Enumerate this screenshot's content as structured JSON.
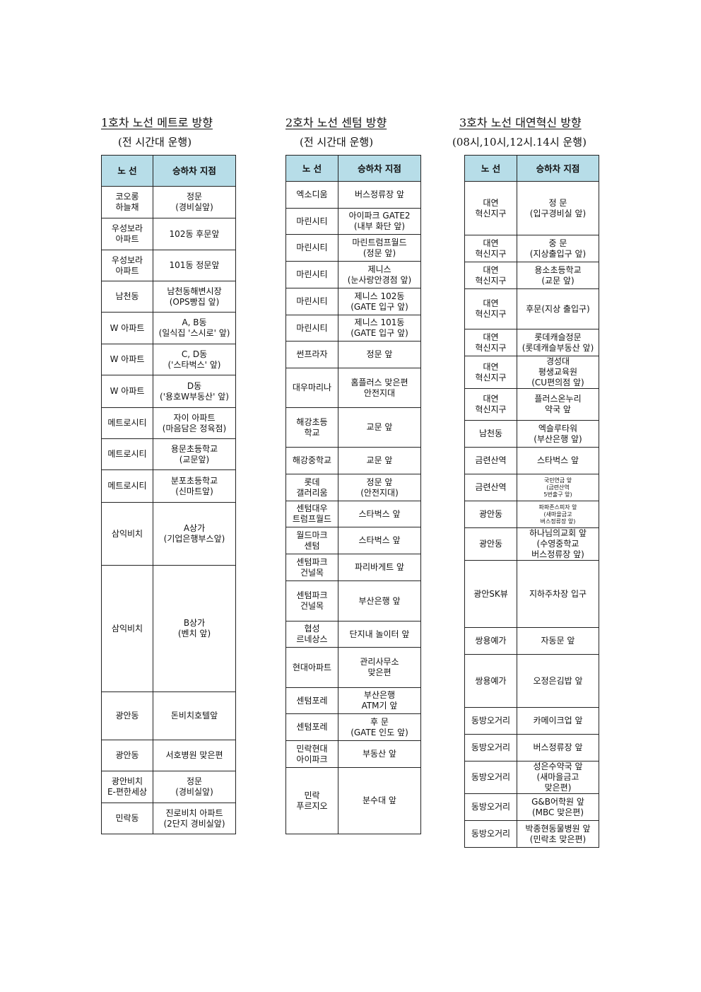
{
  "header_color": "#b7dde8",
  "routes": [
    {
      "title": "1호차 노선 메트로 방향",
      "subtitle": "(전 시간대 운행)",
      "col_route": "노 선",
      "col_stop": "승하차 지점",
      "rows": [
        {
          "route": "코오롱\n하늘채",
          "stop": "정문\n(경비실앞)"
        },
        {
          "route": "우성보라\n아파트",
          "stop": "102동 후문앞"
        },
        {
          "route": "우성보라\n아파트",
          "stop": "101동 정문앞"
        },
        {
          "route": "남천동",
          "stop": "남천동해변시장\n(OPS빵집 앞)"
        },
        {
          "route": "W 아파트",
          "stop": "A, B동\n(일식집 '스시로' 앞)"
        },
        {
          "route": "W 아파트",
          "stop": "C, D동\n('스타벅스' 앞)"
        },
        {
          "route": "W 아파트",
          "stop": "D동\n('용호W부동산' 앞)"
        },
        {
          "route": "메트로시티",
          "stop": "자이 아파트\n(마음담은 정육점)"
        },
        {
          "route": "메트로시티",
          "stop": "용문초등학교\n(교문앞)"
        },
        {
          "route": "메트로시티",
          "stop": "분포초등학교\n(신마트앞)"
        },
        {
          "route": "삼익비치",
          "stop": "A상가\n(기업은행부스앞)"
        },
        {
          "route": "삼익비치",
          "stop": "B상가\n(벤치 앞)"
        },
        {
          "route": "광안동",
          "stop": "돈비치호텔앞"
        },
        {
          "route": "광안동",
          "stop": "서호병원 맞은편"
        },
        {
          "route": "광안비치\nE-편한세상",
          "stop": "정문\n(경비실앞)"
        },
        {
          "route": "민락동",
          "stop": "진로비치 아파트\n(2단지 경비실앞)"
        }
      ]
    },
    {
      "title": "2호차 노선 센텀 방향",
      "subtitle": "(전 시간대 운행)",
      "col_route": "노 선",
      "col_stop": "승하차 지점",
      "rows": [
        {
          "route": "엑소디움",
          "stop": "버스정류장 앞"
        },
        {
          "route": "마린시티",
          "stop": "아이파크 GATE2\n(내부 화단 앞)"
        },
        {
          "route": "마린시티",
          "stop": "마린트럼프월드\n(정문 앞)"
        },
        {
          "route": "마린시티",
          "stop": "제니스\n(눈사랑안경점 앞)"
        },
        {
          "route": "마린시티",
          "stop": "제니스 102동\n(GATE 입구 앞)"
        },
        {
          "route": "마린시티",
          "stop": "제니스 101동\n(GATE 입구 앞)"
        },
        {
          "route": "썬프라자",
          "stop": "정문 앞"
        },
        {
          "route": "대우마리나",
          "stop": "홈플러스 맞은편\n안전지대"
        },
        {
          "route": "해강초등\n학교",
          "stop": "교문 앞"
        },
        {
          "route": "해강중학교",
          "stop": "교문 앞"
        },
        {
          "route": "롯데\n갤러리움",
          "stop": "정문 앞\n(안전지대)"
        },
        {
          "route": "센텀대우\n트럼프월드",
          "stop": "스타벅스 앞"
        },
        {
          "route": "월드마크\n센텀",
          "stop": "스타벅스 앞"
        },
        {
          "route": "센텀파크\n건널목",
          "stop": "파리바게트 앞"
        },
        {
          "route": "센텀파크\n건널목",
          "stop": "부산은행 앞"
        },
        {
          "route": "협성\n르네상스",
          "stop": "단지내 놀이터 앞"
        },
        {
          "route": "현대아파트",
          "stop": "관리사무소\n맞은편"
        },
        {
          "route": "센텀포레",
          "stop": "부산은행\nATM기 앞"
        },
        {
          "route": "센텀포레",
          "stop": "후  문\n(GATE 인도 앞)"
        },
        {
          "route": "민락현대\n아이파크",
          "stop": "부동산 앞"
        },
        {
          "route": "민락\n푸르지오",
          "stop": "분수대 앞"
        }
      ]
    },
    {
      "title": "3호차 노선 대연혁신 방향",
      "subtitle": "(08시,10시,12시.14시  운행)",
      "col_route": "노 선",
      "col_stop": "승하차 지점",
      "rows": [
        {
          "route": "대연\n혁신지구",
          "stop": "정 문\n(입구경비실 앞)"
        },
        {
          "route": "대연\n혁신지구",
          "stop": "중 문\n(지상출입구 앞)"
        },
        {
          "route": "대연\n혁신지구",
          "stop": "용소초등학교\n(교문 앞)"
        },
        {
          "route": "대연\n혁신지구",
          "stop": "후문(지상 출입구)"
        },
        {
          "route": "대연\n혁신지구",
          "stop": "롯데캐슬정문\n(롯데캐슬부동산 앞)"
        },
        {
          "route": "대연\n혁신지구",
          "stop": "경성대\n평생교육원\n(CU편의점 앞)"
        },
        {
          "route": "대연\n혁신지구",
          "stop": "플러스온누리\n약국 앞"
        },
        {
          "route": "남천동",
          "stop": "엑슬루타워\n(부산은행 앞)"
        },
        {
          "route": "금련산역",
          "stop": "스타벅스 앞"
        },
        {
          "route": "금련산역",
          "stop": "국민연금 앞\n(금련산역\n5번출구 앞)"
        },
        {
          "route": "광안동",
          "stop": "파파존스피자 앞\n(새마을금고\n버스정류장 앞)"
        },
        {
          "route": "광안동",
          "stop": "하나님의교회 앞\n(수영중학교\n버스정류장 앞)"
        },
        {
          "route": "광안SK뷰",
          "stop": "지하주차장 입구"
        },
        {
          "route": "쌍용예가",
          "stop": "자동문 앞"
        },
        {
          "route": "쌍용예가",
          "stop": "오정은김밥 앞"
        },
        {
          "route": "동방오거리",
          "stop": "카메이크업 앞"
        },
        {
          "route": "동방오거리",
          "stop": "버스정류장 앞"
        },
        {
          "route": "동방오거리",
          "stop": "성은수약국 앞\n(새마을금고\n맞은편)"
        },
        {
          "route": "동방오거리",
          "stop": "G&B어학원 앞\n(MBC 맞은편)"
        },
        {
          "route": "동방오거리",
          "stop": "박종현동물병원 앞\n(민락초 맞은편)"
        }
      ]
    }
  ]
}
